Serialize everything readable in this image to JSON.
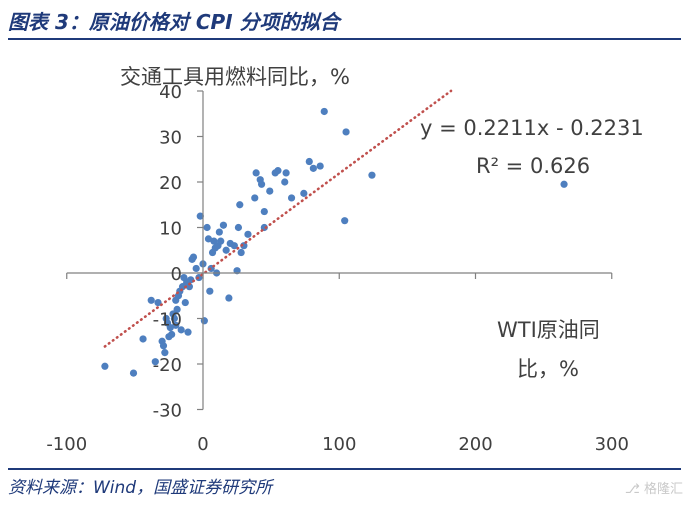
{
  "figure_title": "图表 3：原油价格对 CPI 分项的拟合",
  "source": "资料来源：Wind，国盛证券研究所",
  "watermark": "格隆汇",
  "colors": {
    "points": "#4e7fbf",
    "trendline": "#c0504d",
    "axis": "#808080",
    "text": "#404040",
    "brand": "#1f3a7a"
  },
  "chart_data": {
    "type": "scatter",
    "ylabel": "交通工具用燃料同比，%",
    "xlabel_lines": [
      "WTI原油同",
      "比，%"
    ],
    "xlim": [
      -100,
      300
    ],
    "ylim": [
      -30,
      40
    ],
    "x_ticks": [
      -100,
      0,
      100,
      200,
      300
    ],
    "y_ticks": [
      -30,
      -20,
      -10,
      0,
      10,
      20,
      30,
      40
    ],
    "equation": "y = 0.2211x - 0.2231",
    "r2": "R² = 0.626",
    "trendline": {
      "slope": 0.2211,
      "intercept": -0.2231,
      "x_range": [
        -72,
        182
      ]
    },
    "points": [
      [
        -72,
        -20.5
      ],
      [
        -51,
        -22
      ],
      [
        -44,
        -14.5
      ],
      [
        -38,
        -6
      ],
      [
        -35,
        -19.5
      ],
      [
        -33,
        -6.5
      ],
      [
        -30,
        -15
      ],
      [
        -29,
        -16
      ],
      [
        -28,
        -17.5
      ],
      [
        -27,
        -10
      ],
      [
        -26,
        -11
      ],
      [
        -25,
        -14
      ],
      [
        -24,
        -12
      ],
      [
        -23,
        -13.5
      ],
      [
        -22,
        -9
      ],
      [
        -21,
        -10
      ],
      [
        -20,
        -11.5
      ],
      [
        -20,
        -6
      ],
      [
        -19,
        -8
      ],
      [
        -18,
        -5
      ],
      [
        -17,
        -4
      ],
      [
        -16,
        -12.5
      ],
      [
        -15,
        -3
      ],
      [
        -14,
        -1
      ],
      [
        -13,
        -6.5
      ],
      [
        -12,
        -2
      ],
      [
        -11,
        -13
      ],
      [
        -10,
        -3
      ],
      [
        -9,
        -1.5
      ],
      [
        -8,
        3
      ],
      [
        -7,
        3.5
      ],
      [
        -5,
        1
      ],
      [
        -3,
        -1
      ],
      [
        -2,
        12.5
      ],
      [
        0,
        2
      ],
      [
        1,
        -10.5
      ],
      [
        3,
        10
      ],
      [
        4,
        7.5
      ],
      [
        5,
        -4
      ],
      [
        6,
        1
      ],
      [
        7,
        4.5
      ],
      [
        8,
        7
      ],
      [
        9,
        5.5
      ],
      [
        10,
        0
      ],
      [
        11,
        6
      ],
      [
        12,
        9
      ],
      [
        13,
        7
      ],
      [
        15,
        10.5
      ],
      [
        17,
        5
      ],
      [
        19,
        -5.5
      ],
      [
        20,
        6.5
      ],
      [
        23,
        6
      ],
      [
        25,
        0.5
      ],
      [
        26,
        10
      ],
      [
        27,
        15
      ],
      [
        28,
        4.5
      ],
      [
        30,
        6
      ],
      [
        33,
        8.5
      ],
      [
        38,
        16.5
      ],
      [
        39,
        22
      ],
      [
        42,
        20.5
      ],
      [
        43,
        19.5
      ],
      [
        45,
        10
      ],
      [
        45,
        13.5
      ],
      [
        49,
        18
      ],
      [
        53,
        22
      ],
      [
        55,
        22.5
      ],
      [
        60,
        20
      ],
      [
        61,
        22
      ],
      [
        65,
        16.5
      ],
      [
        74,
        17.5
      ],
      [
        78,
        24.5
      ],
      [
        81,
        23
      ],
      [
        86,
        23.5
      ],
      [
        89,
        35.5
      ],
      [
        104,
        11.5
      ],
      [
        105,
        31
      ],
      [
        124,
        21.5
      ],
      [
        265,
        19.5
      ]
    ]
  }
}
